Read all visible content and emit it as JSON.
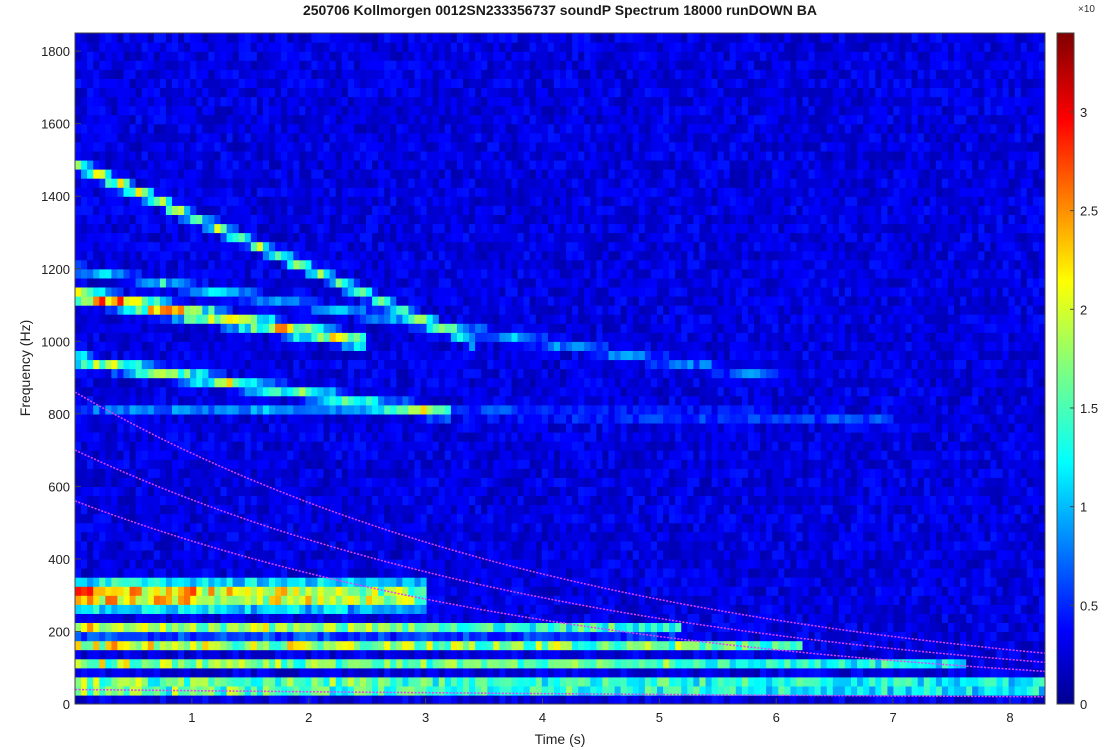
{
  "title": "250706 Kollmorgen 0012SN233356737 soundP Spectrum 18000 runDOWN BA",
  "chart_data": {
    "type": "heatmap",
    "title": "250706 Kollmorgen 0012SN233356737 soundP Spectrum 18000 runDOWN BA",
    "xlabel": "Time (s)",
    "ylabel": "Frequency (Hz)",
    "xlim": [
      0,
      8.3
    ],
    "ylim": [
      0,
      1850
    ],
    "x_ticks": [
      1,
      2,
      3,
      4,
      5,
      6,
      7,
      8
    ],
    "x_tick_labels": [
      "1",
      "2",
      "3",
      "4",
      "5",
      "6",
      "7",
      "8"
    ],
    "y_ticks": [
      0,
      200,
      400,
      600,
      800,
      1000,
      1200,
      1400,
      1600,
      1800
    ],
    "y_tick_labels": [
      "0",
      "200",
      "400",
      "600",
      "800",
      "1000",
      "1200",
      "1400",
      "1600",
      "1800"
    ],
    "colormap": "jet",
    "colorbar": {
      "range": [
        0,
        3.4
      ],
      "ticks": [
        0,
        0.5,
        1,
        1.5,
        2,
        2.5,
        3
      ],
      "tick_labels": [
        "0",
        "0.5",
        "1",
        "1.5",
        "2",
        "2.5",
        "3"
      ],
      "exponent_label": "×10"
    },
    "bands": [
      {
        "f_start": 300,
        "f_end": 300,
        "t_fade": 3.0,
        "width": 60,
        "amp": 3.4
      },
      {
        "f_start": 205,
        "f_end": 205,
        "t_fade": 5.2,
        "width": 20,
        "amp": 3.4
      },
      {
        "f_start": 160,
        "f_end": 160,
        "t_fade": 6.2,
        "width": 20,
        "amp": 2.6
      },
      {
        "f_start": 110,
        "f_end": 110,
        "t_fade": 7.6,
        "width": 15,
        "amp": 2.3
      },
      {
        "f_start": 50,
        "f_end": 50,
        "t_fade": 8.3,
        "width": 25,
        "amp": 3.4
      },
      {
        "f_start": 1130,
        "f_end": 1000,
        "t_fade": 2.5,
        "width": 30,
        "amp": 3.4
      },
      {
        "f_start": 1490,
        "f_end": 1000,
        "t_fade": 3.4,
        "width": 25,
        "amp": 2.2
      },
      {
        "f_start": 950,
        "f_end": 800,
        "t_fade": 3.2,
        "width": 25,
        "amp": 2.3
      },
      {
        "f_start": 1200,
        "f_end": 900,
        "t_fade": 6.0,
        "width": 20,
        "amp": 1.2
      },
      {
        "f_start": 820,
        "f_end": 790,
        "t_fade": 7.0,
        "width": 20,
        "amp": 0.8
      }
    ],
    "order_lines": [
      {
        "f_start": 860,
        "f_end": 140,
        "t_end": 8.3
      },
      {
        "f_start": 700,
        "f_end": 115,
        "t_end": 8.3
      },
      {
        "f_start": 560,
        "f_end": 90,
        "t_end": 8.3
      },
      {
        "f_start": 40,
        "f_end": 20,
        "t_end": 8.3
      }
    ],
    "order_line_color": "#e040fb"
  }
}
